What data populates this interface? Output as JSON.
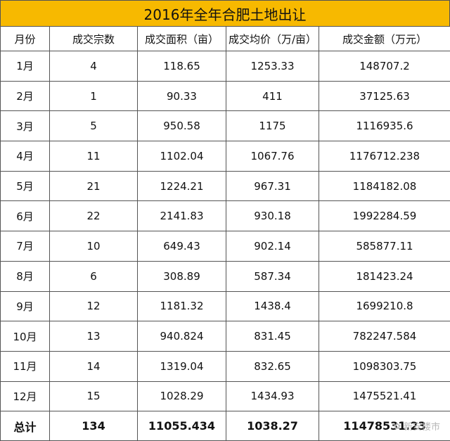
{
  "title": "2016年全年合肥土地出让",
  "headers": [
    "月份",
    "成交宗数",
    "成交面积（亩）",
    "成交均价（万/亩）",
    "成交金额（万元）"
  ],
  "rows": [
    [
      "1月",
      "4",
      "118.65",
      "1253.33",
      "148707.2"
    ],
    [
      "2月",
      "1",
      "90.33",
      "411",
      "37125.63"
    ],
    [
      "3月",
      "5",
      "950.58",
      "1175",
      "1116935.6"
    ],
    [
      "4月",
      "11",
      "1102.04",
      "1067.76",
      "1176712.238"
    ],
    [
      "5月",
      "21",
      "1224.21",
      "967.31",
      "1184182.08"
    ],
    [
      "6月",
      "22",
      "2141.83",
      "930.18",
      "1992284.59"
    ],
    [
      "7月",
      "10",
      "649.43",
      "902.14",
      "585877.11"
    ],
    [
      "8月",
      "6",
      "308.89",
      "587.34",
      "181423.24"
    ],
    [
      "9月",
      "12",
      "1181.32",
      "1438.4",
      "1699210.8"
    ],
    [
      "10月",
      "13",
      "940.824",
      "831.45",
      "782247.584"
    ],
    [
      "11月",
      "14",
      "1319.04",
      "832.65",
      "1098303.75"
    ],
    [
      "12月",
      "15",
      "1028.29",
      "1434.93",
      "1475521.41"
    ]
  ],
  "total": [
    "总计",
    "134",
    "11055.434",
    "1038.27",
    "11478531.23"
  ],
  "watermark": "新安楼市",
  "colors": {
    "title_bg": "#f7b900",
    "border": "#555555"
  }
}
